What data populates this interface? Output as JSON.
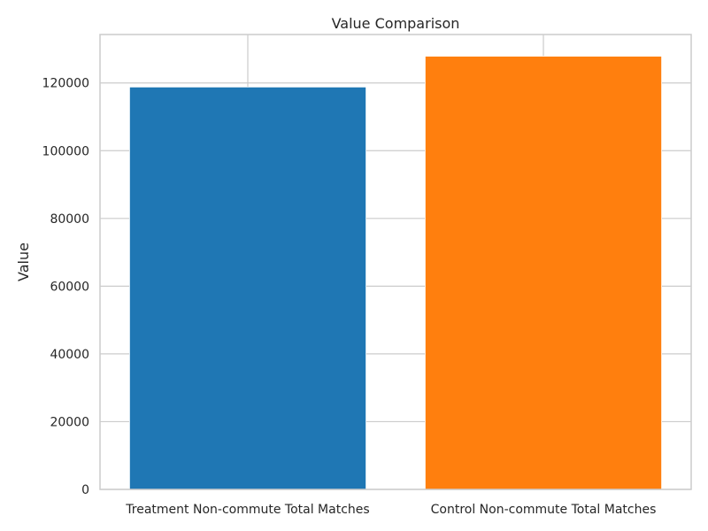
{
  "chart_data": {
    "type": "bar",
    "title": "Value Comparison",
    "xlabel": "",
    "ylabel": "Value",
    "categories": [
      "Treatment Non-commute Total Matches",
      "Control Non-commute Total Matches"
    ],
    "values": [
      118800,
      127900
    ],
    "colors": [
      "#1f77b4",
      "#ff7f0e"
    ],
    "ylim": [
      0,
      134300
    ],
    "yticks": [
      0,
      20000,
      40000,
      60000,
      80000,
      100000,
      120000
    ],
    "grid": true,
    "legend": "none"
  }
}
